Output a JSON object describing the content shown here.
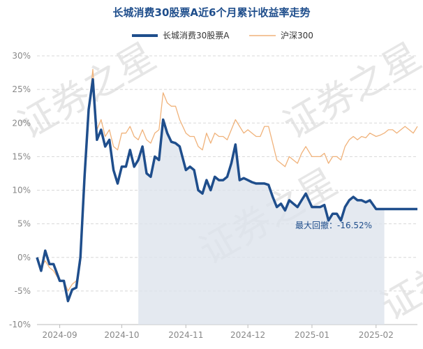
{
  "chart_data": {
    "type": "line",
    "title": "长城消费30股票A近6个月累计收益率走势",
    "watermark": "证券之星",
    "legend_position": "top",
    "grid": true,
    "y_ticks": [
      "30%",
      "25%",
      "20%",
      "15%",
      "10%",
      "5%",
      "0%",
      "-5%",
      "-10%"
    ],
    "x_ticks": [
      "2024-09",
      "2024-10",
      "2024-11",
      "2024-12",
      "2025-01",
      "2025-02"
    ],
    "ylim": [
      -10,
      30
    ],
    "annotation": "最大回撤：-16.52%",
    "drawdown_range": [
      "2024-10-08",
      "2025-02-06"
    ],
    "colors": {
      "fund": "#1f4e8c",
      "index": "#f0b27a",
      "drawdown": "#dde4ec"
    },
    "series": [
      {
        "name": "长城消费30股票A",
        "x": [
          "2024-08-21",
          "2024-08-23",
          "2024-08-25",
          "2024-08-27",
          "2024-08-29",
          "2024-09-01",
          "2024-09-03",
          "2024-09-05",
          "2024-09-07",
          "2024-09-09",
          "2024-09-11",
          "2024-09-13",
          "2024-09-15",
          "2024-09-17",
          "2024-09-19",
          "2024-09-21",
          "2024-09-23",
          "2024-09-25",
          "2024-09-27",
          "2024-09-29",
          "2024-10-01",
          "2024-10-03",
          "2024-10-05",
          "2024-10-07",
          "2024-10-09",
          "2024-10-11",
          "2024-10-13",
          "2024-10-15",
          "2024-10-17",
          "2024-10-19",
          "2024-10-21",
          "2024-10-23",
          "2024-10-25",
          "2024-10-27",
          "2024-10-29",
          "2024-11-01",
          "2024-11-03",
          "2024-11-05",
          "2024-11-07",
          "2024-11-09",
          "2024-11-11",
          "2024-11-13",
          "2024-11-15",
          "2024-11-17",
          "2024-11-19",
          "2024-11-21",
          "2024-11-23",
          "2024-11-25",
          "2024-11-27",
          "2024-11-29",
          "2024-12-01",
          "2024-12-03",
          "2024-12-05",
          "2024-12-07",
          "2024-12-09",
          "2024-12-11",
          "2024-12-13",
          "2024-12-15",
          "2024-12-17",
          "2024-12-19",
          "2024-12-21",
          "2024-12-23",
          "2024-12-25",
          "2024-12-27",
          "2024-12-29",
          "2025-01-01",
          "2025-01-03",
          "2025-01-05",
          "2025-01-07",
          "2025-01-09",
          "2025-01-11",
          "2025-01-13",
          "2025-01-15",
          "2025-01-17",
          "2025-01-19",
          "2025-01-21",
          "2025-01-23",
          "2025-01-25",
          "2025-01-27",
          "2025-01-29",
          "2025-02-01",
          "2025-02-03",
          "2025-02-05",
          "2025-02-07",
          "2025-02-09",
          "2025-02-11",
          "2025-02-13",
          "2025-02-15",
          "2025-02-17",
          "2025-02-19",
          "2025-02-21"
        ],
        "values": [
          0.0,
          -2.0,
          1.0,
          -1.0,
          -1.0,
          -3.5,
          -3.5,
          -6.5,
          -4.8,
          -4.5,
          0.0,
          12.0,
          22.0,
          26.5,
          17.5,
          19.0,
          16.5,
          17.5,
          13.0,
          11.0,
          13.5,
          13.5,
          16.0,
          13.5,
          14.5,
          16.5,
          12.5,
          12.0,
          15.0,
          14.5,
          20.5,
          18.5,
          17.2,
          17.0,
          16.5,
          13.0,
          13.5,
          13.0,
          10.0,
          9.5,
          11.5,
          10.0,
          12.0,
          11.5,
          11.5,
          12.0,
          14.0,
          16.8,
          11.5,
          11.8,
          11.5,
          11.2,
          11.0,
          11.0,
          11.0,
          10.8,
          9.0,
          7.5,
          8.0,
          7.0,
          8.5,
          8.0,
          7.5,
          8.5,
          9.5,
          7.5,
          7.5,
          7.5,
          7.8,
          5.5,
          6.5,
          6.5,
          5.5,
          7.5,
          8.5,
          9.0,
          8.5,
          8.5,
          8.2,
          8.5,
          7.2,
          7.2,
          7.2,
          7.2,
          7.2,
          7.2,
          7.2,
          7.2,
          7.2,
          7.2,
          7.2
        ]
      },
      {
        "name": "沪深300",
        "x": [
          "2024-08-21",
          "2024-08-23",
          "2024-08-25",
          "2024-08-27",
          "2024-08-29",
          "2024-09-01",
          "2024-09-03",
          "2024-09-05",
          "2024-09-07",
          "2024-09-09",
          "2024-09-11",
          "2024-09-13",
          "2024-09-15",
          "2024-09-17",
          "2024-09-19",
          "2024-09-21",
          "2024-09-23",
          "2024-09-25",
          "2024-09-27",
          "2024-09-29",
          "2024-10-01",
          "2024-10-03",
          "2024-10-05",
          "2024-10-07",
          "2024-10-09",
          "2024-10-11",
          "2024-10-13",
          "2024-10-15",
          "2024-10-17",
          "2024-10-19",
          "2024-10-21",
          "2024-10-23",
          "2024-10-25",
          "2024-10-27",
          "2024-10-29",
          "2024-11-01",
          "2024-11-03",
          "2024-11-05",
          "2024-11-07",
          "2024-11-09",
          "2024-11-11",
          "2024-11-13",
          "2024-11-15",
          "2024-11-17",
          "2024-11-19",
          "2024-11-21",
          "2024-11-23",
          "2024-11-25",
          "2024-11-27",
          "2024-11-29",
          "2024-12-01",
          "2024-12-03",
          "2024-12-05",
          "2024-12-07",
          "2024-12-09",
          "2024-12-11",
          "2024-12-13",
          "2024-12-15",
          "2024-12-17",
          "2024-12-19",
          "2024-12-21",
          "2024-12-23",
          "2024-12-25",
          "2024-12-27",
          "2024-12-29",
          "2025-01-01",
          "2025-01-03",
          "2025-01-05",
          "2025-01-07",
          "2025-01-09",
          "2025-01-11",
          "2025-01-13",
          "2025-01-15",
          "2025-01-17",
          "2025-01-19",
          "2025-01-21",
          "2025-01-23",
          "2025-01-25",
          "2025-01-27",
          "2025-01-29",
          "2025-02-01",
          "2025-02-03",
          "2025-02-05",
          "2025-02-07",
          "2025-02-09",
          "2025-02-11",
          "2025-02-13",
          "2025-02-15",
          "2025-02-17",
          "2025-02-19",
          "2025-02-21"
        ],
        "values": [
          0.0,
          -1.5,
          -0.5,
          -1.5,
          -2.0,
          -3.5,
          -3.5,
          -5.0,
          -4.0,
          -3.5,
          -1.0,
          10.0,
          22.0,
          28.0,
          19.0,
          20.5,
          18.0,
          19.0,
          16.5,
          16.0,
          18.5,
          18.5,
          19.5,
          18.0,
          17.5,
          19.0,
          17.5,
          17.0,
          18.5,
          19.0,
          24.5,
          23.0,
          22.5,
          22.5,
          20.5,
          18.5,
          18.0,
          18.0,
          16.5,
          16.0,
          18.5,
          17.0,
          18.5,
          18.0,
          18.0,
          17.5,
          19.0,
          20.5,
          19.5,
          18.5,
          19.0,
          18.5,
          18.0,
          18.0,
          19.5,
          19.5,
          17.0,
          14.5,
          14.0,
          13.5,
          15.0,
          14.5,
          14.0,
          15.5,
          16.5,
          15.0,
          15.0,
          15.0,
          15.5,
          14.0,
          15.0,
          15.0,
          14.5,
          16.5,
          17.5,
          18.0,
          17.5,
          18.0,
          17.8,
          18.5,
          18.0,
          18.2,
          18.5,
          19.0,
          19.0,
          18.5,
          19.0,
          19.5,
          19.0,
          18.5,
          19.5
        ]
      }
    ]
  }
}
